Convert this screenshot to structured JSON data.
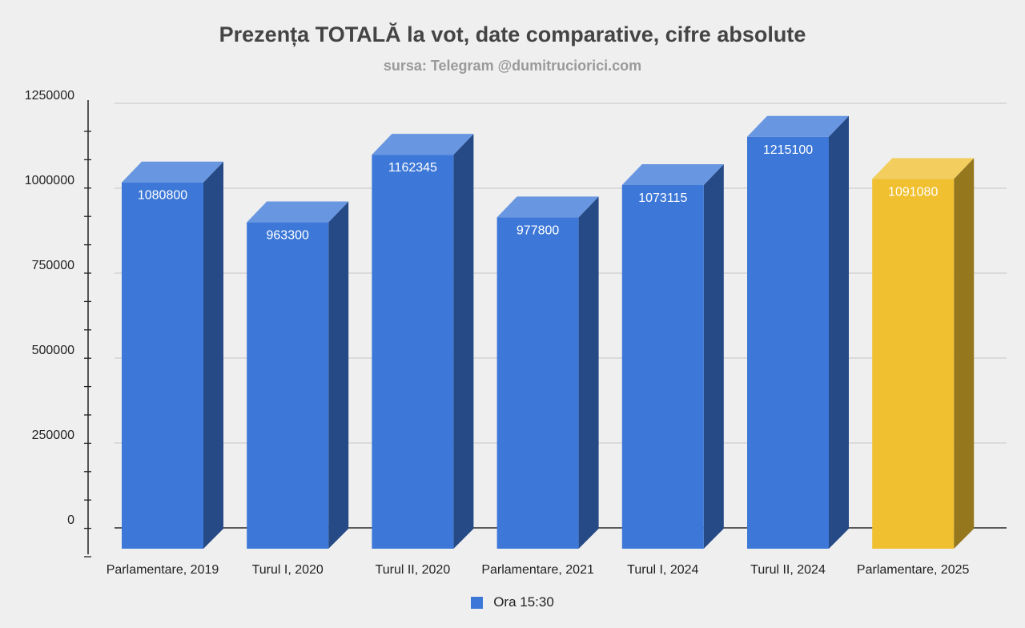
{
  "chart_data": {
    "type": "bar",
    "title": "Prezența TOTALĂ la vot, date comparative, cifre absolute",
    "subtitle": "sursa: Telegram @dumitruciorici.com",
    "categories": [
      "Parlamentare, 2019",
      "Turul I, 2020",
      "Turul II, 2020",
      "Parlamentare, 2021",
      "Turul I, 2024",
      "Turul II, 2024",
      "Parlamentare, 2025"
    ],
    "series": [
      {
        "name": "Ora 15:30",
        "values": [
          1080800,
          963300,
          1162345,
          977800,
          1073115,
          1215100,
          1091080
        ],
        "data_labels": [
          "1080800",
          "963300",
          "1162345",
          "977800",
          "1073115",
          "1215100",
          "1091080"
        ]
      }
    ],
    "y_ticks": [
      "0",
      "250000",
      "500000",
      "750000",
      "1000000",
      "1250000"
    ],
    "ylim": [
      0,
      1250000
    ],
    "grid": true,
    "legend_position": "bottom",
    "colors": {
      "bar": "#3d78d8",
      "bar_highlight": "#f0c030",
      "grid": "#c4c4c4",
      "axis": "#222222"
    },
    "highlight_index": 6
  }
}
